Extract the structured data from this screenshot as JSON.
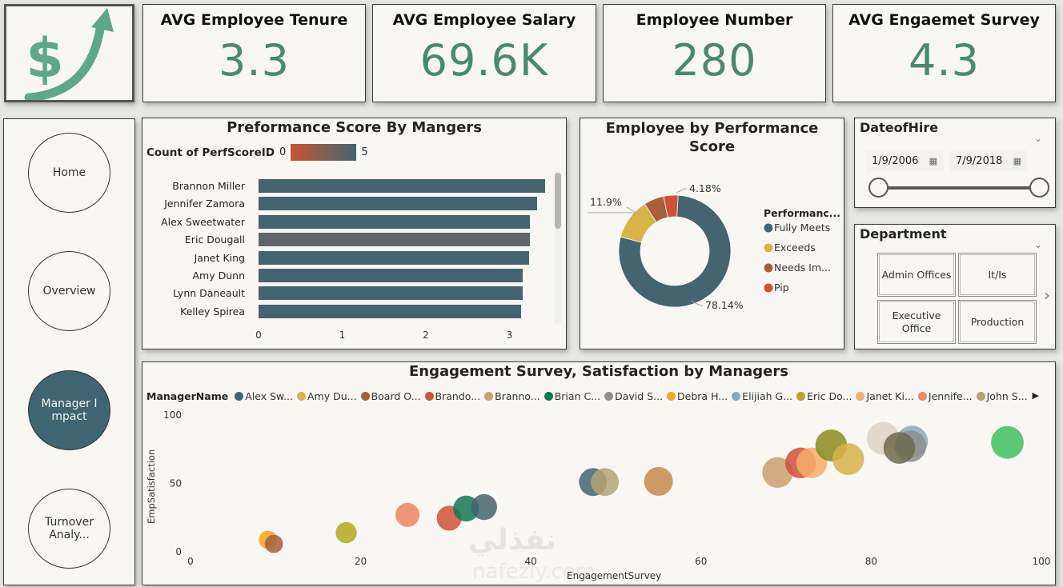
{
  "kpis": [
    {
      "title": "AVG Employee Tenure",
      "value": "3.3"
    },
    {
      "title": "AVG Employee Salary",
      "value": "69.6K"
    },
    {
      "title": "Employee Number",
      "value": "280"
    },
    {
      "title": "AVG Engaemet Survey",
      "value": "4.3"
    }
  ],
  "logo": {
    "icon": "dollar-growth-arrow-icon"
  },
  "nav": {
    "items": [
      {
        "label": "Home",
        "active": false
      },
      {
        "label": "Overview",
        "active": false
      },
      {
        "label": "Manager Impact",
        "active": true
      },
      {
        "label": "Turnover Analy...",
        "active": false
      }
    ]
  },
  "colors": {
    "accent": "#3f6572",
    "kpi_value": "#4a8a6c",
    "bar": "#44646f",
    "bar_highlight": "#5f6569"
  },
  "date_slicer": {
    "title": "DateofHire",
    "start": "1/9/2006",
    "end": "7/9/2018",
    "range_fraction": [
      0,
      1
    ]
  },
  "dept_slicer": {
    "title": "Department",
    "tiles": [
      "Admin Offices",
      "It/Is",
      "Executive Office",
      "Production"
    ]
  },
  "chart_data": [
    {
      "type": "bar",
      "orientation": "horizontal",
      "title": "Preformance Score By Mangers",
      "legend_title": "Count of PerfScoreID",
      "legend_min": "0",
      "legend_max": "5",
      "categories": [
        "Brannon Miller",
        "Jennifer Zamora",
        "Alex Sweetwater",
        "Eric Dougall",
        "Janet King",
        "Amy Dunn",
        "Lynn Daneault",
        "Kelley Spirea"
      ],
      "values": [
        3.43,
        3.33,
        3.24,
        3.24,
        3.23,
        3.16,
        3.16,
        3.14
      ],
      "highlighted": "Eric Dougall",
      "xticks": [
        "0",
        "1",
        "2",
        "3"
      ],
      "xlim": [
        0,
        3.5
      ]
    },
    {
      "type": "pie",
      "donut": true,
      "title": "Employee by Performance Score",
      "legend_title": "Performanc...",
      "slices": [
        {
          "label": "Fully Meets",
          "value": 78.14,
          "display": "78.14%",
          "color": "#44646f"
        },
        {
          "label": "Exceeds",
          "value": 11.9,
          "display": "11.9%",
          "color": "#d6b44a"
        },
        {
          "label": "Needs Im...",
          "value": 5.78,
          "display": "",
          "color": "#a85f3a"
        },
        {
          "label": "Pip",
          "value": 4.18,
          "display": "4.18%",
          "color": "#cf5138"
        }
      ]
    },
    {
      "type": "scatter",
      "title": "Engagement Survey, Satisfaction by Managers",
      "xlabel": "EngagementSurvey",
      "ylabel": "EmpSatisfaction",
      "xlim": [
        0,
        100
      ],
      "ylim": [
        0,
        100
      ],
      "xticks": [
        "0",
        "20",
        "40",
        "60",
        "80",
        "100"
      ],
      "yticks": [
        "0",
        "50",
        "100"
      ],
      "legend_title": "ManagerName",
      "legend": [
        {
          "name": "Alex Sw...",
          "color": "#44646f"
        },
        {
          "name": "Amy Du...",
          "color": "#d6b44a"
        },
        {
          "name": "Board O...",
          "color": "#a85f3a"
        },
        {
          "name": "Brando...",
          "color": "#cf5138"
        },
        {
          "name": "Branno...",
          "color": "#c9a06e"
        },
        {
          "name": "Brian C...",
          "color": "#117a55"
        },
        {
          "name": "David S...",
          "color": "#8e8e8a"
        },
        {
          "name": "Debra H...",
          "color": "#f5a623"
        },
        {
          "name": "Elijiah G...",
          "color": "#8aaab8"
        },
        {
          "name": "Eric Do...",
          "color": "#b5a81c"
        },
        {
          "name": "Janet Ki...",
          "color": "#f7ad6a"
        },
        {
          "name": "Jennife...",
          "color": "#ef8561"
        },
        {
          "name": "John S...",
          "color": "#b3a476"
        }
      ],
      "points": [
        {
          "x": 9.1,
          "y": 8.8,
          "size": 0.45,
          "color": "#f5a623"
        },
        {
          "x": 9.8,
          "y": 5.8,
          "size": 0.45,
          "color": "#a85f3a"
        },
        {
          "x": 18.3,
          "y": 14,
          "size": 0.6,
          "color": "#b5a81c"
        },
        {
          "x": 25.5,
          "y": 27,
          "size": 0.75,
          "color": "#ef8561"
        },
        {
          "x": 30.4,
          "y": 24.6,
          "size": 0.8,
          "color": "#cf5138"
        },
        {
          "x": 32.4,
          "y": 31.6,
          "size": 0.85,
          "color": "#117a55"
        },
        {
          "x": 34.5,
          "y": 32.7,
          "size": 0.85,
          "color": "#44646f"
        },
        {
          "x": 47.3,
          "y": 51,
          "size": 0.95,
          "color": "#44646f"
        },
        {
          "x": 48.7,
          "y": 51,
          "size": 0.95,
          "color": "#b3a476"
        },
        {
          "x": 55.0,
          "y": 51.5,
          "size": 1.0,
          "color": "#c98a4a"
        },
        {
          "x": 69.0,
          "y": 58,
          "size": 1.1,
          "color": "#c9a06e"
        },
        {
          "x": 71.7,
          "y": 65,
          "size": 1.1,
          "color": "#cf5138"
        },
        {
          "x": 73.0,
          "y": 65,
          "size": 1.1,
          "color": "#f7ad6a"
        },
        {
          "x": 75.3,
          "y": 77.8,
          "size": 1.15,
          "color": "#8b8a1e"
        },
        {
          "x": 77.3,
          "y": 67.8,
          "size": 1.15,
          "color": "#d6b44a"
        },
        {
          "x": 81.4,
          "y": 83,
          "size": 1.2,
          "color": "#ddd4c6"
        },
        {
          "x": 84.8,
          "y": 80.7,
          "size": 1.15,
          "color": "#8aaab8"
        },
        {
          "x": 84.6,
          "y": 77.2,
          "size": 1.15,
          "color": "#8e8e8a"
        },
        {
          "x": 83.3,
          "y": 76,
          "size": 1.15,
          "color": "#6f6a4e"
        },
        {
          "x": 96.0,
          "y": 80,
          "size": 1.2,
          "color": "#3fbf5f"
        }
      ]
    }
  ],
  "watermark": {
    "arabic": "نفذلي",
    "latin": "nafezly.com"
  }
}
